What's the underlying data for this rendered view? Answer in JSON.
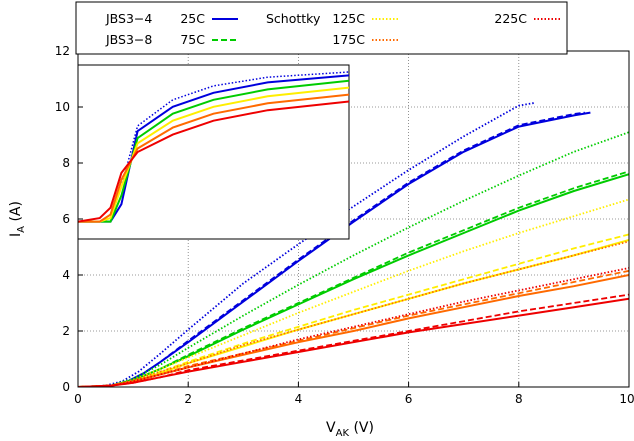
{
  "chart_data": {
    "type": "line",
    "xlabel": {
      "main": "V",
      "sub": "AK",
      "unit": " (V)"
    },
    "ylabel": {
      "main": "I",
      "sub": "A",
      "unit": " (A)"
    },
    "xlim": [
      0,
      10
    ],
    "ylim": [
      0,
      12
    ],
    "x_ticks": [
      0,
      2,
      4,
      6,
      8,
      10
    ],
    "y_ticks": [
      0,
      2,
      4,
      6,
      8,
      10,
      12
    ],
    "grid": true,
    "legend": {
      "placement": "top",
      "device_labels": [
        "JBS3−4",
        "JBS3−8",
        "Schottky"
      ],
      "temperature_labels": [
        "25C",
        "75C",
        "125C",
        "175C",
        "225C"
      ]
    },
    "colors": {
      "25C": "#0000dd",
      "75C": "#00cc00",
      "125C": "#ffee00",
      "175C": "#ff6a00",
      "225C": "#ee0000"
    },
    "series": [
      {
        "device": "JBS3-4",
        "temperature": "25C",
        "style": "solid",
        "x": [
          0,
          0.6,
          0.9,
          1.2,
          1.5,
          2,
          3,
          4,
          5,
          6,
          7,
          8,
          9,
          9.3
        ],
        "y": [
          0,
          0.05,
          0.2,
          0.5,
          0.9,
          1.6,
          3.05,
          4.5,
          5.9,
          7.25,
          8.4,
          9.3,
          9.7,
          9.8
        ]
      },
      {
        "device": "JBS3-8",
        "temperature": "25C",
        "style": "dashed",
        "x": [
          0,
          0.6,
          0.9,
          1.2,
          1.5,
          2,
          3,
          4,
          5,
          6,
          7,
          8,
          9,
          9.2
        ],
        "y": [
          0,
          0.05,
          0.2,
          0.5,
          0.9,
          1.65,
          3.1,
          4.55,
          5.95,
          7.3,
          8.45,
          9.35,
          9.75,
          9.8
        ]
      },
      {
        "device": "Schottky",
        "temperature": "25C",
        "style": "dotted",
        "x": [
          0,
          0.5,
          0.8,
          1.1,
          1.5,
          2,
          3,
          4,
          5,
          6,
          7,
          8,
          8.3
        ],
        "y": [
          0,
          0.05,
          0.2,
          0.55,
          1.2,
          2.05,
          3.7,
          5.1,
          6.45,
          7.75,
          8.95,
          10.05,
          10.15
        ]
      },
      {
        "device": "JBS3-4",
        "temperature": "75C",
        "style": "solid",
        "x": [
          0,
          0.6,
          1.0,
          1.5,
          2,
          3,
          4,
          5,
          6,
          7,
          8,
          9,
          10
        ],
        "y": [
          0,
          0.05,
          0.25,
          0.65,
          1.1,
          2.05,
          2.95,
          3.85,
          4.7,
          5.5,
          6.3,
          7.0,
          7.6
        ]
      },
      {
        "device": "JBS3-8",
        "temperature": "75C",
        "style": "dashed",
        "x": [
          0,
          0.6,
          1.0,
          1.5,
          2,
          3,
          4,
          5,
          6,
          7,
          8,
          9,
          10
        ],
        "y": [
          0,
          0.05,
          0.25,
          0.65,
          1.15,
          2.1,
          3.0,
          3.9,
          4.8,
          5.6,
          6.4,
          7.1,
          7.7
        ]
      },
      {
        "device": "Schottky",
        "temperature": "75C",
        "style": "dotted",
        "x": [
          0,
          0.6,
          1.0,
          1.5,
          2,
          3,
          4,
          5,
          6,
          7,
          8,
          9,
          10
        ],
        "y": [
          0,
          0.05,
          0.3,
          0.8,
          1.4,
          2.55,
          3.65,
          4.7,
          5.7,
          6.65,
          7.55,
          8.4,
          9.1
        ]
      },
      {
        "device": "JBS3-4",
        "temperature": "125C",
        "style": "solid",
        "x": [
          0,
          0.6,
          1.0,
          1.5,
          2,
          3,
          4,
          5,
          6,
          7,
          8,
          9,
          10
        ],
        "y": [
          0,
          0.05,
          0.2,
          0.5,
          0.85,
          1.45,
          2.05,
          2.6,
          3.15,
          3.7,
          4.2,
          4.7,
          5.25
        ]
      },
      {
        "device": "JBS3-8",
        "temperature": "125C",
        "style": "dashed",
        "x": [
          0,
          0.6,
          1.0,
          1.5,
          2,
          3,
          4,
          5,
          6,
          7,
          8,
          9,
          10
        ],
        "y": [
          0,
          0.05,
          0.2,
          0.55,
          0.9,
          1.55,
          2.15,
          2.75,
          3.3,
          3.85,
          4.4,
          4.95,
          5.45
        ]
      },
      {
        "device": "Schottky",
        "temperature": "125C",
        "style": "dotted",
        "x": [
          0,
          0.6,
          1.0,
          1.5,
          2,
          3,
          4,
          5,
          6,
          7,
          8,
          9,
          10
        ],
        "y": [
          0,
          0.05,
          0.25,
          0.65,
          1.05,
          1.85,
          2.65,
          3.4,
          4.15,
          4.85,
          5.5,
          6.1,
          6.7
        ]
      },
      {
        "device": "JBS3-4",
        "temperature": "175C",
        "style": "solid",
        "x": [
          0,
          0.6,
          1.0,
          1.5,
          2,
          3,
          4,
          5,
          6,
          7,
          8,
          9,
          10
        ],
        "y": [
          0,
          0.05,
          0.2,
          0.45,
          0.7,
          1.15,
          1.6,
          2.0,
          2.45,
          2.85,
          3.25,
          3.6,
          4.0
        ]
      },
      {
        "device": "JBS3-8",
        "temperature": "175C",
        "style": "dashed",
        "x": [
          0,
          0.6,
          1.0,
          1.5,
          2,
          3,
          4,
          5,
          6,
          7,
          8,
          9,
          10
        ],
        "y": [
          0,
          0.05,
          0.2,
          0.45,
          0.75,
          1.2,
          1.65,
          2.1,
          2.55,
          2.95,
          3.35,
          3.75,
          4.15
        ]
      },
      {
        "device": "Schottky",
        "temperature": "175C",
        "style": "dotted",
        "x": [
          0,
          0.6,
          1.0,
          1.5,
          2,
          3,
          4,
          5,
          6,
          7,
          8,
          9,
          10
        ],
        "y": [
          0,
          0.05,
          0.25,
          0.55,
          0.85,
          1.5,
          2.05,
          2.6,
          3.15,
          3.7,
          4.2,
          4.7,
          5.2
        ]
      },
      {
        "device": "JBS3-4",
        "temperature": "225C",
        "style": "solid",
        "x": [
          0,
          0.6,
          1.0,
          1.5,
          2,
          3,
          4,
          5,
          6,
          7,
          8,
          9,
          10
        ],
        "y": [
          0,
          0.05,
          0.15,
          0.35,
          0.55,
          0.9,
          1.25,
          1.6,
          1.95,
          2.25,
          2.55,
          2.85,
          3.15
        ]
      },
      {
        "device": "JBS3-8",
        "temperature": "225C",
        "style": "dashed",
        "x": [
          0,
          0.6,
          1.0,
          1.5,
          2,
          3,
          4,
          5,
          6,
          7,
          8,
          9,
          10
        ],
        "y": [
          0,
          0.05,
          0.15,
          0.35,
          0.6,
          0.95,
          1.3,
          1.65,
          2.0,
          2.35,
          2.7,
          3.0,
          3.3
        ]
      },
      {
        "device": "Schottky",
        "temperature": "225C",
        "style": "dotted",
        "x": [
          0,
          0.6,
          1.0,
          1.5,
          2,
          3,
          4,
          5,
          6,
          7,
          8,
          9,
          10
        ],
        "y": [
          0,
          0.05,
          0.2,
          0.45,
          0.7,
          1.2,
          1.7,
          2.15,
          2.6,
          3.05,
          3.45,
          3.85,
          4.25
        ]
      }
    ],
    "inset": {
      "description_visible": false,
      "series": [
        {
          "temperature": "25C",
          "device": "JBS3-4",
          "style": "solid",
          "x": [
            0,
            0.08,
            0.12,
            0.16,
            0.22,
            0.35,
            0.5,
            0.7,
            1
          ],
          "y": [
            0.1,
            0.1,
            0.1,
            0.2,
            0.62,
            0.76,
            0.84,
            0.9,
            0.94
          ]
        },
        {
          "temperature": "25C",
          "device": "Schottky",
          "style": "dotted",
          "x": [
            0,
            0.08,
            0.12,
            0.16,
            0.22,
            0.35,
            0.5,
            0.7,
            1
          ],
          "y": [
            0.1,
            0.1,
            0.12,
            0.3,
            0.65,
            0.8,
            0.88,
            0.93,
            0.96
          ]
        },
        {
          "temperature": "75C",
          "device": "JBS3-4",
          "style": "solid",
          "x": [
            0,
            0.08,
            0.12,
            0.16,
            0.22,
            0.35,
            0.5,
            0.7,
            1
          ],
          "y": [
            0.1,
            0.1,
            0.1,
            0.25,
            0.58,
            0.72,
            0.8,
            0.86,
            0.91
          ]
        },
        {
          "temperature": "125C",
          "device": "JBS3-4",
          "style": "solid",
          "x": [
            0,
            0.08,
            0.12,
            0.16,
            0.22,
            0.35,
            0.5,
            0.7,
            1
          ],
          "y": [
            0.1,
            0.1,
            0.12,
            0.3,
            0.55,
            0.68,
            0.76,
            0.82,
            0.87
          ]
        },
        {
          "temperature": "175C",
          "device": "JBS3-4",
          "style": "solid",
          "x": [
            0,
            0.08,
            0.12,
            0.16,
            0.22,
            0.35,
            0.5,
            0.7,
            1
          ],
          "y": [
            0.1,
            0.1,
            0.14,
            0.34,
            0.52,
            0.64,
            0.72,
            0.78,
            0.83
          ]
        },
        {
          "temperature": "225C",
          "device": "JBS3-4",
          "style": "solid",
          "x": [
            0,
            0.08,
            0.12,
            0.16,
            0.22,
            0.35,
            0.5,
            0.7,
            1
          ],
          "y": [
            0.1,
            0.12,
            0.18,
            0.38,
            0.5,
            0.6,
            0.68,
            0.74,
            0.79
          ]
        }
      ]
    }
  }
}
